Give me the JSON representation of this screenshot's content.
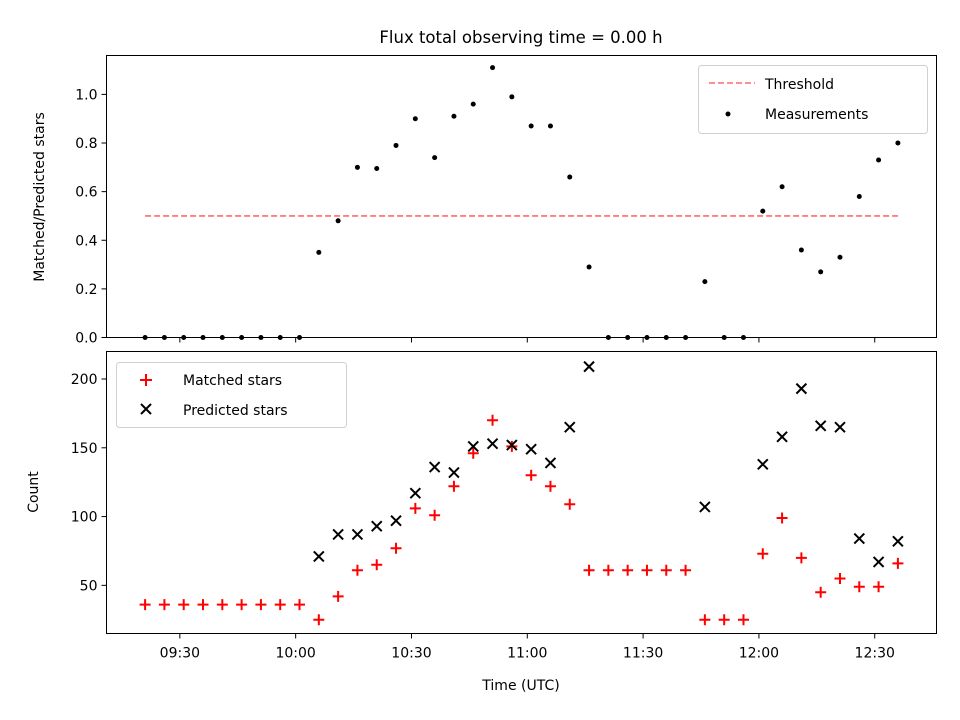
{
  "figure": {
    "title": "Flux total observing time = 0.00 h"
  },
  "chart_data": [
    {
      "type": "scatter",
      "title": "Flux total observing time = 0.00 h",
      "xlabel": "",
      "ylabel": "Matched/Predicted stars",
      "yticks": [
        "0.0",
        "0.2",
        "0.4",
        "0.6",
        "0.8",
        "1.0"
      ],
      "ylim": [
        0,
        1.16
      ],
      "legend_position": "top-right",
      "series": [
        {
          "name": "Threshold",
          "kind": "dashed-line",
          "color": "#ff7f7f",
          "x": [
            "09:21",
            "12:36"
          ],
          "y": [
            0.5,
            0.5
          ]
        },
        {
          "name": "Measurements",
          "kind": "dot",
          "color": "#000000",
          "x": [
            "09:21",
            "09:26",
            "09:31",
            "09:36",
            "09:41",
            "09:46",
            "09:51",
            "09:56",
            "10:01",
            "10:06",
            "10:11",
            "10:16",
            "10:21",
            "10:26",
            "10:31",
            "10:36",
            "10:41",
            "10:46",
            "10:51",
            "10:56",
            "11:01",
            "11:06",
            "11:11",
            "11:16",
            "11:21",
            "11:26",
            "11:31",
            "11:36",
            "11:41",
            "11:46",
            "11:51",
            "11:56",
            "12:01",
            "12:06",
            "12:11",
            "12:16",
            "12:21",
            "12:26",
            "12:31",
            "12:36"
          ],
          "y": [
            0,
            0,
            0,
            0,
            0,
            0,
            0,
            0,
            0,
            0.35,
            0.48,
            0.7,
            0.695,
            0.79,
            0.9,
            0.74,
            0.91,
            0.96,
            1.11,
            0.99,
            0.87,
            0.87,
            0.66,
            0.29,
            0,
            0,
            0,
            0,
            0,
            0.23,
            0,
            0,
            0.52,
            0.62,
            0.36,
            0.27,
            0.33,
            0.58,
            0.73,
            0.8
          ]
        }
      ]
    },
    {
      "type": "scatter",
      "xlabel": "Time (UTC)",
      "ylabel": "Count",
      "xticks": [
        "09:30",
        "10:00",
        "10:30",
        "11:00",
        "11:30",
        "12:00",
        "12:30"
      ],
      "yticks": [
        "50",
        "100",
        "150",
        "200"
      ],
      "ylim": [
        15,
        220
      ],
      "legend_position": "top-left",
      "series": [
        {
          "name": "Matched stars",
          "marker": "plus",
          "color": "#ff0000",
          "x": [
            "09:21",
            "09:26",
            "09:31",
            "09:36",
            "09:41",
            "09:46",
            "09:51",
            "09:56",
            "10:01",
            "10:06",
            "10:11",
            "10:16",
            "10:21",
            "10:26",
            "10:31",
            "10:36",
            "10:41",
            "10:46",
            "10:51",
            "10:56",
            "11:01",
            "11:06",
            "11:11",
            "11:16",
            "11:21",
            "11:26",
            "11:31",
            "11:36",
            "11:41",
            "11:46",
            "11:51",
            "11:56",
            "12:01",
            "12:06",
            "12:11",
            "12:16",
            "12:21",
            "12:26",
            "12:31",
            "12:36"
          ],
          "y": [
            36,
            36,
            36,
            36,
            36,
            36,
            36,
            36,
            36,
            25,
            42,
            61,
            65,
            77,
            106,
            101,
            122,
            146,
            170,
            151,
            130,
            122,
            109,
            61,
            61,
            61,
            61,
            61,
            61,
            25,
            25,
            25,
            73,
            99,
            70,
            45,
            55,
            49,
            49,
            66
          ]
        },
        {
          "name": "Predicted stars",
          "marker": "x",
          "color": "#000000",
          "x": [
            "10:06",
            "10:11",
            "10:16",
            "10:21",
            "10:26",
            "10:31",
            "10:36",
            "10:41",
            "10:46",
            "10:51",
            "10:56",
            "11:01",
            "11:06",
            "11:11",
            "11:16",
            "11:46",
            "12:01",
            "12:06",
            "12:11",
            "12:16",
            "12:21",
            "12:26",
            "12:31",
            "12:36"
          ],
          "y": [
            71,
            87,
            87,
            93,
            97,
            117,
            136,
            132,
            151,
            153,
            152,
            149,
            139,
            165,
            209,
            107,
            138,
            158,
            193,
            166,
            165,
            84,
            67,
            82
          ]
        }
      ]
    }
  ]
}
